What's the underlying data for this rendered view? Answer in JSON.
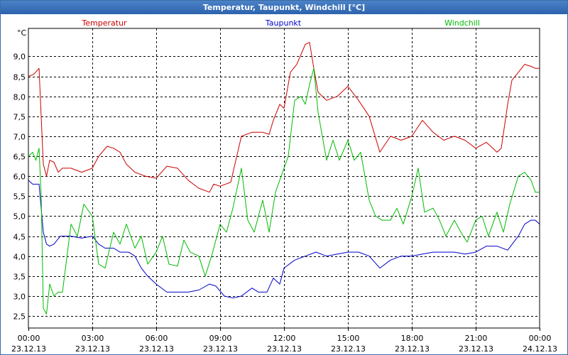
{
  "chart_data": {
    "type": "line",
    "title": "Temperatur, Taupunkt, Windchill [°C]",
    "ylabel": "°C",
    "ylim": [
      2.2,
      9.7
    ],
    "yticks": [
      2.5,
      3.0,
      3.5,
      4.0,
      4.5,
      5.0,
      5.5,
      6.0,
      6.5,
      7.0,
      7.5,
      8.0,
      8.5,
      9.0
    ],
    "ytick_labels": [
      "2,5",
      "3,0",
      "3,5",
      "4,0",
      "4,5",
      "5,0",
      "5,5",
      "6,0",
      "6,5",
      "7,0",
      "7,5",
      "8,0",
      "8,5",
      "9,0"
    ],
    "xlim": [
      0,
      24
    ],
    "xticks": [
      {
        "hours": 0,
        "time": "00:00",
        "date": "23.12.13"
      },
      {
        "hours": 3,
        "time": "03:00",
        "date": "23.12.13"
      },
      {
        "hours": 6,
        "time": "06:00",
        "date": "23.12.13"
      },
      {
        "hours": 9,
        "time": "09:00",
        "date": "23.12.13"
      },
      {
        "hours": 12,
        "time": "12:00",
        "date": "23.12.13"
      },
      {
        "hours": 15,
        "time": "15:00",
        "date": "23.12.13"
      },
      {
        "hours": 18,
        "time": "18:00",
        "date": "23.12.13"
      },
      {
        "hours": 21,
        "time": "21:00",
        "date": "23.12.13"
      },
      {
        "hours": 24,
        "time": "00:00",
        "date": "24.12.13"
      }
    ],
    "grid": true,
    "series": [
      {
        "name": "Temperatur",
        "color": "#cc0000",
        "x": [
          0,
          0.25,
          0.5,
          0.6,
          0.7,
          0.85,
          1.0,
          1.2,
          1.4,
          1.6,
          2.0,
          2.5,
          3.0,
          3.3,
          3.7,
          4.0,
          4.3,
          4.6,
          5.0,
          5.5,
          6.0,
          6.5,
          7.0,
          7.5,
          8.0,
          8.5,
          8.7,
          9.0,
          9.5,
          10.0,
          10.5,
          11.0,
          11.3,
          11.5,
          11.8,
          12.0,
          12.3,
          12.6,
          13.0,
          13.2,
          13.4,
          13.6,
          14.0,
          14.5,
          15.0,
          15.5,
          16.0,
          16.5,
          17.0,
          17.5,
          18.0,
          18.5,
          19.0,
          19.5,
          20.0,
          20.5,
          21.0,
          21.5,
          22.0,
          22.2,
          22.5,
          22.7,
          23.0,
          23.3,
          23.6,
          23.8,
          24.0
        ],
        "values": [
          8.5,
          8.55,
          8.7,
          7.5,
          6.3,
          6.0,
          6.4,
          6.35,
          6.1,
          6.2,
          6.2,
          6.1,
          6.2,
          6.5,
          6.75,
          6.7,
          6.6,
          6.3,
          6.1,
          6.0,
          5.95,
          6.25,
          6.2,
          5.9,
          5.7,
          5.6,
          5.8,
          5.75,
          5.85,
          7.0,
          7.1,
          7.1,
          7.05,
          7.4,
          7.8,
          7.7,
          8.6,
          8.8,
          9.3,
          9.35,
          8.7,
          8.1,
          7.9,
          8.0,
          8.25,
          7.9,
          7.5,
          6.6,
          7.0,
          6.9,
          7.0,
          7.4,
          7.1,
          6.9,
          7.0,
          6.9,
          6.7,
          6.85,
          6.6,
          6.7,
          7.8,
          8.4,
          8.6,
          8.8,
          8.75,
          8.7,
          8.7
        ]
      },
      {
        "name": "Taupunkt",
        "color": "#0000cc",
        "x": [
          0,
          0.2,
          0.5,
          0.7,
          0.85,
          1.0,
          1.2,
          1.5,
          2.0,
          2.5,
          3.0,
          3.3,
          3.6,
          4.0,
          4.3,
          4.7,
          5.0,
          5.3,
          5.6,
          6.0,
          6.5,
          7.0,
          7.5,
          8.0,
          8.5,
          8.8,
          9.2,
          9.6,
          10.0,
          10.5,
          10.8,
          11.2,
          11.5,
          11.8,
          12.0,
          12.5,
          13.0,
          13.5,
          14.0,
          14.5,
          15.0,
          15.5,
          16.0,
          16.5,
          17.0,
          17.5,
          18.0,
          18.5,
          19.0,
          19.5,
          20.0,
          20.5,
          21.0,
          21.5,
          22.0,
          22.5,
          23.0,
          23.3,
          23.6,
          23.8,
          24.0
        ],
        "values": [
          5.9,
          5.8,
          5.8,
          4.6,
          4.3,
          4.25,
          4.3,
          4.5,
          4.5,
          4.45,
          4.5,
          4.3,
          4.2,
          4.2,
          4.1,
          4.1,
          4.0,
          3.7,
          3.5,
          3.3,
          3.1,
          3.1,
          3.1,
          3.15,
          3.3,
          3.25,
          3.0,
          2.95,
          3.0,
          3.2,
          3.1,
          3.1,
          3.45,
          3.3,
          3.7,
          3.9,
          4.0,
          4.1,
          4.0,
          4.05,
          4.1,
          4.1,
          4.0,
          3.7,
          3.9,
          4.0,
          4.0,
          4.05,
          4.1,
          4.1,
          4.1,
          4.05,
          4.1,
          4.25,
          4.25,
          4.15,
          4.5,
          4.8,
          4.9,
          4.9,
          4.8
        ]
      },
      {
        "name": "Windchill",
        "color": "#00bb00",
        "x": [
          0,
          0.2,
          0.35,
          0.5,
          0.6,
          0.7,
          0.85,
          1.0,
          1.2,
          1.4,
          1.6,
          2.0,
          2.3,
          2.6,
          3.0,
          3.3,
          3.6,
          4.0,
          4.3,
          4.6,
          5.0,
          5.3,
          5.6,
          6.0,
          6.3,
          6.6,
          7.0,
          7.3,
          7.6,
          8.0,
          8.3,
          8.6,
          9.0,
          9.3,
          9.6,
          10.0,
          10.3,
          10.6,
          11.0,
          11.3,
          11.6,
          12.0,
          12.2,
          12.5,
          12.8,
          13.0,
          13.2,
          13.4,
          13.6,
          14.0,
          14.3,
          14.6,
          15.0,
          15.3,
          15.6,
          16.0,
          16.3,
          16.6,
          17.0,
          17.3,
          17.6,
          18.0,
          18.3,
          18.6,
          19.0,
          19.3,
          19.6,
          20.0,
          20.3,
          20.6,
          21.0,
          21.3,
          21.6,
          22.0,
          22.3,
          22.6,
          23.0,
          23.3,
          23.6,
          23.8,
          24.0
        ],
        "values": [
          6.5,
          6.6,
          6.4,
          6.7,
          5.5,
          2.7,
          2.55,
          3.3,
          3.0,
          3.1,
          3.1,
          4.8,
          4.5,
          5.3,
          5.0,
          3.8,
          3.7,
          4.6,
          4.3,
          4.8,
          4.2,
          4.5,
          3.8,
          4.1,
          4.5,
          3.8,
          3.75,
          4.4,
          4.1,
          4.0,
          3.5,
          4.0,
          4.8,
          4.6,
          5.2,
          6.2,
          4.9,
          4.6,
          5.4,
          4.6,
          5.6,
          6.2,
          6.5,
          7.9,
          8.0,
          7.8,
          8.3,
          8.7,
          7.6,
          6.4,
          6.9,
          6.4,
          6.9,
          6.4,
          6.6,
          5.4,
          5.0,
          4.9,
          4.9,
          5.2,
          4.8,
          5.5,
          6.2,
          5.1,
          5.2,
          4.9,
          4.5,
          4.9,
          4.6,
          4.35,
          4.9,
          5.0,
          4.5,
          5.1,
          4.6,
          5.3,
          6.0,
          6.1,
          5.9,
          5.6,
          5.6
        ]
      }
    ]
  }
}
